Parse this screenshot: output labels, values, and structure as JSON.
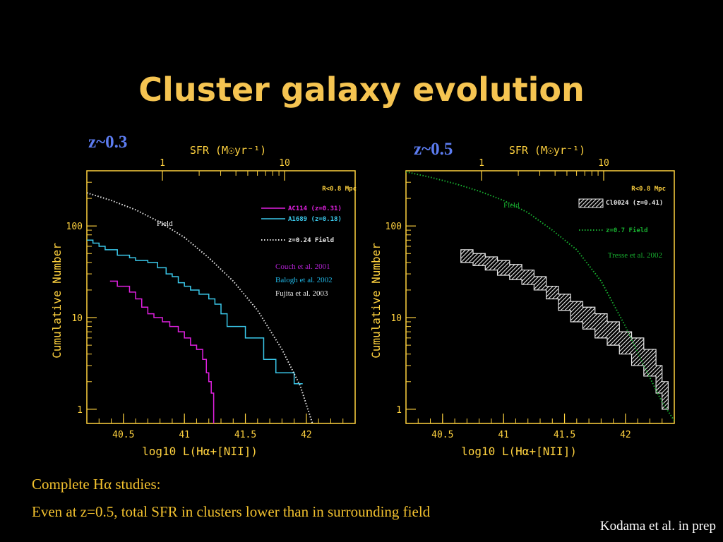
{
  "slide": {
    "title": "Cluster galaxy evolution",
    "caption_line1": "Complete Hα studies:",
    "caption_line2": "Even at z=0.5, total SFR in clusters lower than in surrounding field",
    "credit": "Kodama et al. in prep"
  },
  "colors": {
    "title": "#f5c451",
    "axis": "#ffd23f",
    "zlabel": "#5c7cf0"
  },
  "chart_data": [
    {
      "type": "line",
      "panel_label": "z~0.3",
      "top_axis_label": "SFR (M☉yr⁻¹)",
      "top_ticks": [
        "1",
        "10"
      ],
      "xlabel": "log10 L(Hα+[NII])",
      "ylabel": "Cumulative Number",
      "x_ticks": [
        "40.5",
        "41",
        "41.5",
        "42"
      ],
      "y_ticks": [
        "1",
        "10",
        "100"
      ],
      "y_scale": "log",
      "xlim": [
        40.2,
        42.4
      ],
      "ylim": [
        0.7,
        400
      ],
      "radius_label": "R<0.8 Mpc",
      "field_label": "Field",
      "references": [
        {
          "text": "Couch et al. 2001",
          "color": "#b020d0"
        },
        {
          "text": "Balogh et al. 2002",
          "color": "#20b8e8"
        },
        {
          "text": "Fujita et al. 2003",
          "color": "#e8e8e8"
        }
      ],
      "series": [
        {
          "name": "AC114 (z=0.31)",
          "color": "#e020e0",
          "style": "step",
          "x": [
            40.39,
            40.45,
            40.55,
            40.6,
            40.65,
            40.7,
            40.75,
            40.82,
            40.88,
            40.95,
            41.0,
            41.05,
            41.1,
            41.15,
            41.18,
            41.2,
            41.22,
            41.24
          ],
          "y": [
            25,
            22,
            19,
            16,
            13,
            11,
            10,
            9,
            8,
            7,
            6,
            5,
            4.5,
            3.5,
            2.5,
            2,
            1.5,
            0.7
          ]
        },
        {
          "name": "A1689 (z=0.18)",
          "color": "#3ac8ea",
          "style": "step",
          "x": [
            40.2,
            40.25,
            40.3,
            40.35,
            40.45,
            40.55,
            40.6,
            40.7,
            40.78,
            40.85,
            40.9,
            40.95,
            41.0,
            41.05,
            41.12,
            41.2,
            41.25,
            41.3,
            41.35,
            41.5,
            41.65,
            41.75,
            41.9,
            41.97
          ],
          "y": [
            70,
            65,
            60,
            55,
            48,
            45,
            42,
            40,
            35,
            30,
            28,
            24,
            22,
            20,
            18,
            16,
            14,
            11,
            8,
            6,
            3.5,
            2.5,
            1.9,
            1.9
          ]
        },
        {
          "name": "z=0.24 Field",
          "color": "#e8e8e8",
          "style": "dotted",
          "x": [
            40.2,
            40.4,
            40.6,
            40.8,
            41.0,
            41.2,
            41.4,
            41.6,
            41.8,
            41.95,
            42.05
          ],
          "y": [
            230,
            190,
            150,
            110,
            75,
            45,
            25,
            12,
            4.5,
            1.8,
            0.7
          ]
        }
      ]
    },
    {
      "type": "area",
      "panel_label": "z~0.5",
      "top_axis_label": "SFR (M☉yr⁻¹)",
      "top_ticks": [
        "1",
        "10"
      ],
      "xlabel": "log10 L(Hα+[NII])",
      "ylabel": "Cumulative Number",
      "x_ticks": [
        "40.5",
        "41",
        "41.5",
        "42"
      ],
      "y_ticks": [
        "1",
        "10",
        "100"
      ],
      "y_scale": "log",
      "xlim": [
        40.2,
        42.4
      ],
      "ylim": [
        0.7,
        400
      ],
      "radius_label": "R<0.8 Mpc",
      "field_label": "Field",
      "references": [
        {
          "text": "Tresse et al. 2002",
          "color": "#18b030"
        }
      ],
      "series": [
        {
          "name": "Cl0024 (z=0.41)",
          "color": "#e8e8e8",
          "style": "band",
          "x": [
            40.65,
            40.75,
            40.85,
            40.95,
            41.05,
            41.15,
            41.25,
            41.35,
            41.45,
            41.55,
            41.65,
            41.75,
            41.85,
            41.95,
            42.05,
            42.15,
            42.25,
            42.3
          ],
          "y_low": [
            40,
            37,
            33,
            29,
            26,
            23,
            20,
            16,
            12,
            9,
            7.5,
            6,
            5,
            4,
            3,
            2.3,
            1.5,
            1.0
          ],
          "y_high": [
            55,
            50,
            46,
            42,
            38,
            33,
            28,
            22,
            18,
            15,
            13,
            11,
            9,
            7,
            6,
            4.5,
            3,
            2.0
          ]
        },
        {
          "name": "z=0.7 Field",
          "color": "#18b030",
          "style": "dotted",
          "x": [
            40.2,
            40.4,
            40.6,
            40.8,
            41.0,
            41.2,
            41.4,
            41.6,
            41.8,
            42.0,
            42.15,
            42.3,
            42.4
          ],
          "y": [
            390,
            340,
            290,
            240,
            190,
            140,
            90,
            55,
            25,
            8,
            3,
            1.2,
            0.75
          ]
        }
      ]
    }
  ]
}
